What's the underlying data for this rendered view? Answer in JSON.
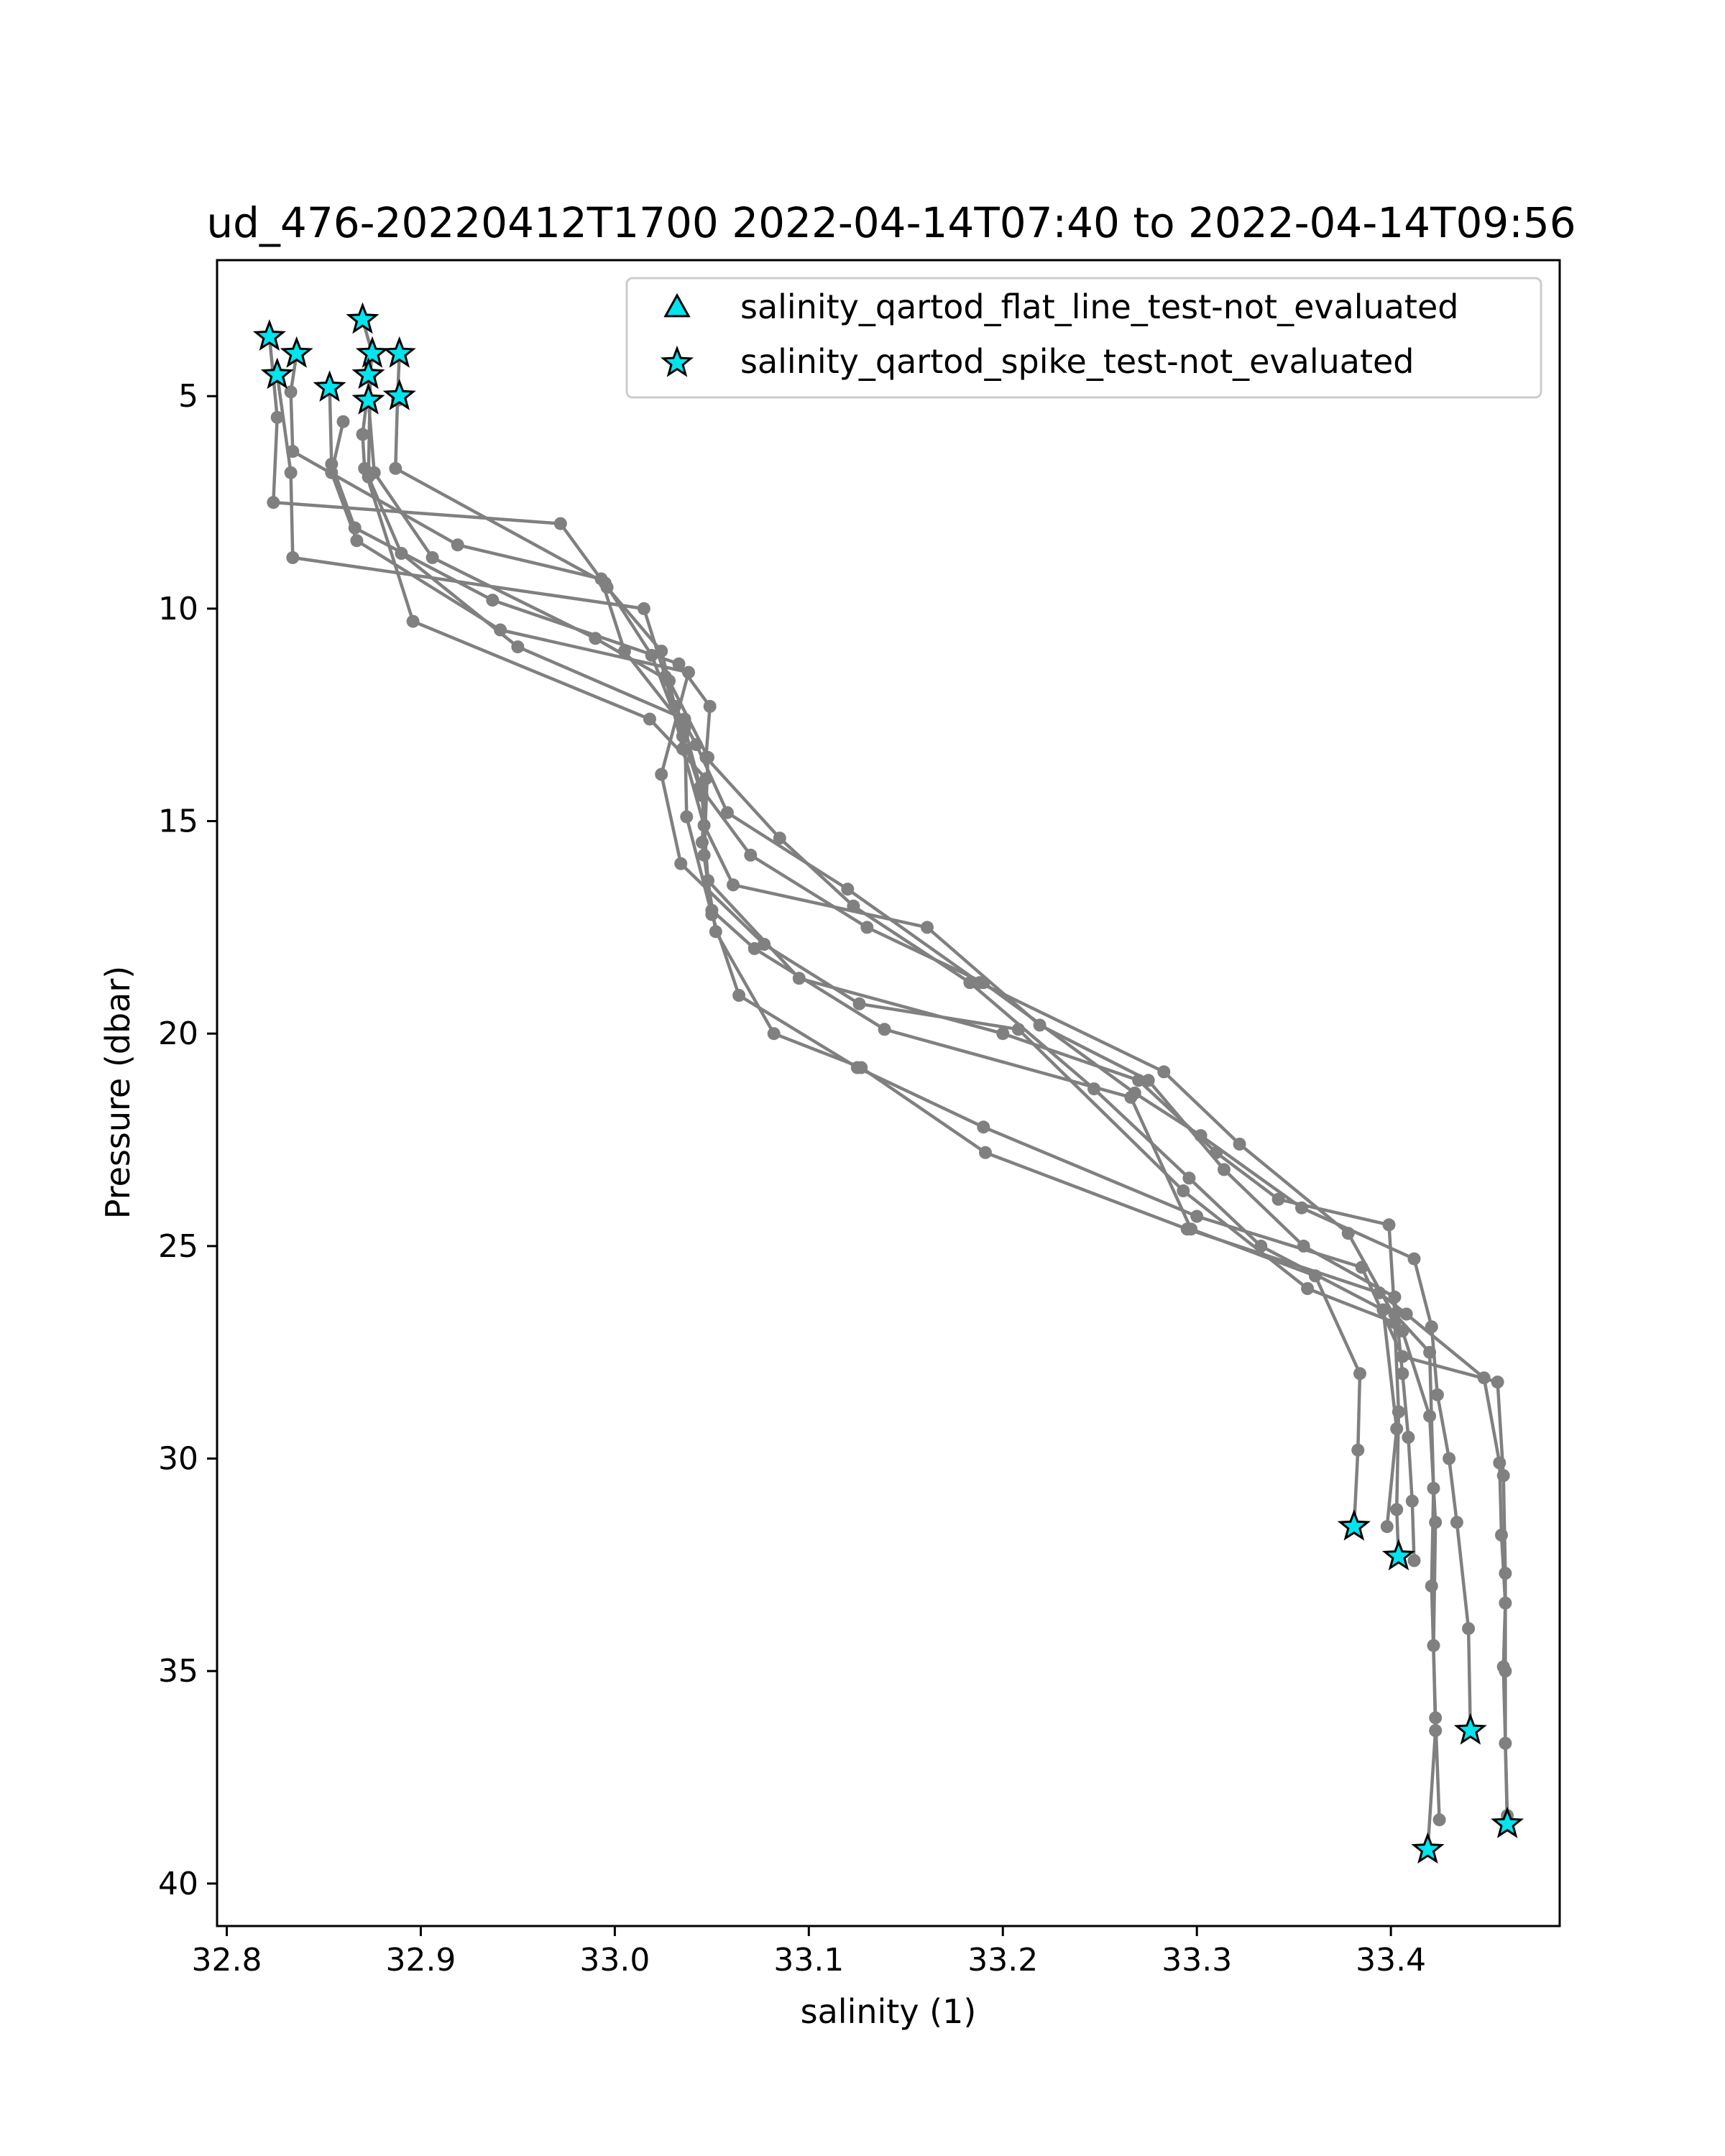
{
  "chart_data": {
    "type": "scatter",
    "title": "ud_476-20220412T1700 2022-04-14T07:40 to 2022-04-14T09:56",
    "xlabel": "salinity (1)",
    "ylabel": "Pressure (dbar)",
    "xlim": [
      32.795,
      33.487
    ],
    "ylim": [
      41.0,
      1.8
    ],
    "y_inverted": true,
    "grid": false,
    "xticks": [
      32.8,
      32.9,
      33.0,
      33.1,
      33.2,
      33.3,
      33.4
    ],
    "xtick_labels": [
      "32.8",
      "32.9",
      "33.0",
      "33.1",
      "33.2",
      "33.3",
      "33.4"
    ],
    "yticks": [
      5,
      10,
      15,
      20,
      25,
      30,
      35,
      40
    ],
    "ytick_labels": [
      "5",
      "10",
      "15",
      "20",
      "25",
      "30",
      "35",
      "40"
    ],
    "legend": {
      "placement": "top-right",
      "entries": [
        {
          "label": "salinity_qartod_flat_line_test-not_evaluated",
          "marker": "triangle"
        },
        {
          "label": "salinity_qartod_spike_test-not_evaluated",
          "marker": "star"
        }
      ]
    },
    "colors": {
      "line": "#808080",
      "marker_fill": "#00e5ee",
      "marker_edge": "#000000"
    },
    "profiles": [
      {
        "points": [
          [
            32.822,
            3.6
          ],
          [
            32.826,
            5.5
          ],
          [
            32.824,
            7.5
          ],
          [
            32.972,
            8.0
          ],
          [
            32.996,
            9.5
          ],
          [
            33.024,
            11.0
          ],
          [
            33.031,
            12.3
          ],
          [
            33.042,
            13.2
          ],
          [
            33.058,
            14.8
          ],
          [
            33.12,
            16.6
          ],
          [
            33.188,
            18.8
          ],
          [
            33.283,
            20.9
          ],
          [
            33.322,
            22.6
          ],
          [
            33.378,
            24.7
          ],
          [
            33.406,
            27.0
          ],
          [
            33.42,
            29.0
          ],
          [
            33.423,
            31.5
          ],
          [
            33.422,
            34.4
          ],
          [
            33.423,
            36.4
          ],
          [
            33.419,
            39.2
          ]
        ]
      },
      {
        "points": [
          [
            32.836,
            4.0
          ],
          [
            32.833,
            4.9
          ],
          [
            32.834,
            6.3
          ],
          [
            32.919,
            8.5
          ],
          [
            32.993,
            9.3
          ],
          [
            33.005,
            11.0
          ],
          [
            33.036,
            12.8
          ],
          [
            33.044,
            14.2
          ],
          [
            33.07,
            15.8
          ],
          [
            33.13,
            17.5
          ],
          [
            33.19,
            18.8
          ],
          [
            33.268,
            21.4
          ],
          [
            33.302,
            22.4
          ],
          [
            33.354,
            24.1
          ],
          [
            33.412,
            25.3
          ],
          [
            33.421,
            26.9
          ],
          [
            33.424,
            28.5
          ],
          [
            33.43,
            30.0
          ],
          [
            33.434,
            31.5
          ],
          [
            33.44,
            34.0
          ],
          [
            33.441,
            36.4
          ]
        ]
      },
      {
        "points": [
          [
            32.826,
            4.5
          ],
          [
            32.833,
            6.8
          ],
          [
            32.834,
            8.8
          ],
          [
            33.015,
            10.0
          ],
          [
            33.026,
            11.6
          ],
          [
            33.035,
            13.3
          ],
          [
            33.046,
            15.1
          ],
          [
            33.061,
            16.5
          ],
          [
            33.161,
            17.5
          ],
          [
            33.219,
            19.8
          ],
          [
            33.275,
            21.1
          ],
          [
            33.314,
            23.2
          ],
          [
            33.355,
            25.0
          ],
          [
            33.402,
            26.2
          ],
          [
            33.406,
            28.0
          ],
          [
            33.409,
            29.5
          ],
          [
            33.411,
            31.0
          ],
          [
            33.412,
            32.4
          ]
        ]
      },
      {
        "points": [
          [
            32.853,
            4.8
          ],
          [
            32.854,
            6.6
          ],
          [
            32.866,
            8.1
          ],
          [
            32.937,
            9.8
          ],
          [
            33.033,
            11.3
          ],
          [
            33.049,
            12.3
          ],
          [
            33.047,
            13.5
          ],
          [
            33.085,
            15.4
          ],
          [
            33.123,
            17.0
          ],
          [
            33.183,
            18.8
          ],
          [
            33.247,
            21.3
          ],
          [
            33.296,
            23.4
          ],
          [
            33.333,
            25.0
          ],
          [
            33.396,
            26.5
          ],
          [
            33.403,
            29.3
          ],
          [
            33.398,
            31.6
          ]
        ]
      },
      {
        "points": [
          [
            32.86,
            5.6
          ],
          [
            32.854,
            6.8
          ],
          [
            32.867,
            8.4
          ],
          [
            32.941,
            10.5
          ],
          [
            33.038,
            11.5
          ],
          [
            33.024,
            13.9
          ],
          [
            33.034,
            16.0
          ],
          [
            33.077,
            17.9
          ],
          [
            33.126,
            19.3
          ],
          [
            33.208,
            19.9
          ],
          [
            33.293,
            23.7
          ],
          [
            33.357,
            26.0
          ],
          [
            33.402,
            26.8
          ],
          [
            33.404,
            28.9
          ],
          [
            33.403,
            31.2
          ],
          [
            33.404,
            32.3
          ]
        ]
      },
      {
        "points": [
          [
            32.87,
            3.2
          ],
          [
            32.875,
            4.0
          ],
          [
            32.87,
            5.9
          ],
          [
            32.871,
            6.7
          ],
          [
            32.896,
            10.3
          ],
          [
            33.018,
            12.6
          ],
          [
            33.047,
            14.0
          ],
          [
            33.045,
            15.5
          ],
          [
            33.05,
            17.1
          ],
          [
            33.072,
            18.0
          ],
          [
            33.139,
            19.9
          ],
          [
            33.266,
            21.5
          ],
          [
            33.297,
            24.6
          ],
          [
            33.361,
            25.7
          ],
          [
            33.384,
            28.0
          ],
          [
            33.383,
            29.8
          ],
          [
            33.381,
            31.6
          ]
        ]
      },
      {
        "points": [
          [
            32.874,
            4.5
          ],
          [
            32.873,
            6.9
          ],
          [
            32.89,
            8.7
          ],
          [
            32.95,
            10.9
          ],
          [
            33.036,
            12.6
          ],
          [
            33.037,
            14.9
          ],
          [
            33.05,
            17.2
          ],
          [
            33.064,
            19.1
          ],
          [
            33.125,
            20.8
          ],
          [
            33.19,
            22.2
          ],
          [
            33.3,
            24.3
          ],
          [
            33.385,
            25.5
          ],
          [
            33.406,
            27.6
          ],
          [
            33.455,
            28.2
          ],
          [
            33.458,
            30.4
          ],
          [
            33.459,
            32.7
          ],
          [
            33.459,
            35.0
          ],
          [
            33.459,
            36.7
          ],
          [
            33.46,
            38.6
          ]
        ]
      },
      {
        "points": [
          [
            32.873,
            5.1
          ],
          [
            32.876,
            6.8
          ],
          [
            32.906,
            8.8
          ],
          [
            32.99,
            10.7
          ],
          [
            33.028,
            11.7
          ],
          [
            33.048,
            13.5
          ],
          [
            33.046,
            15.8
          ],
          [
            33.052,
            17.6
          ],
          [
            33.082,
            20.0
          ],
          [
            33.127,
            20.8
          ],
          [
            33.191,
            22.8
          ],
          [
            33.295,
            24.6
          ],
          [
            33.394,
            26.1
          ],
          [
            33.408,
            26.6
          ],
          [
            33.448,
            28.1
          ],
          [
            33.456,
            30.1
          ],
          [
            33.457,
            31.8
          ],
          [
            33.459,
            33.4
          ],
          [
            33.458,
            34.9
          ],
          [
            33.46,
            38.4
          ]
        ]
      },
      {
        "points": [
          [
            32.889,
            4.0
          ],
          [
            32.888,
            5.1
          ],
          [
            32.887,
            6.7
          ],
          [
            32.995,
            9.4
          ],
          [
            33.019,
            11.1
          ],
          [
            33.035,
            13.0
          ],
          [
            33.045,
            14.4
          ],
          [
            33.048,
            16.4
          ],
          [
            33.095,
            18.7
          ],
          [
            33.2,
            20.0
          ],
          [
            33.27,
            21.1
          ],
          [
            33.31,
            22.8
          ],
          [
            33.342,
            23.9
          ],
          [
            33.399,
            24.5
          ],
          [
            33.402,
            26.6
          ],
          [
            33.42,
            27.5
          ],
          [
            33.422,
            30.7
          ],
          [
            33.421,
            33.0
          ],
          [
            33.423,
            36.1
          ],
          [
            33.425,
            38.5
          ]
        ]
      }
    ],
    "spike_test_not_evaluated": [
      [
        32.822,
        3.6
      ],
      [
        32.836,
        4.0
      ],
      [
        32.826,
        4.5
      ],
      [
        32.853,
        4.8
      ],
      [
        32.87,
        3.2
      ],
      [
        32.875,
        4.0
      ],
      [
        32.873,
        4.5
      ],
      [
        32.873,
        5.1
      ],
      [
        32.889,
        4.0
      ],
      [
        32.889,
        5.0
      ],
      [
        33.381,
        31.6
      ],
      [
        33.404,
        32.3
      ],
      [
        33.441,
        36.4
      ],
      [
        33.46,
        38.6
      ],
      [
        33.419,
        39.2
      ]
    ]
  }
}
